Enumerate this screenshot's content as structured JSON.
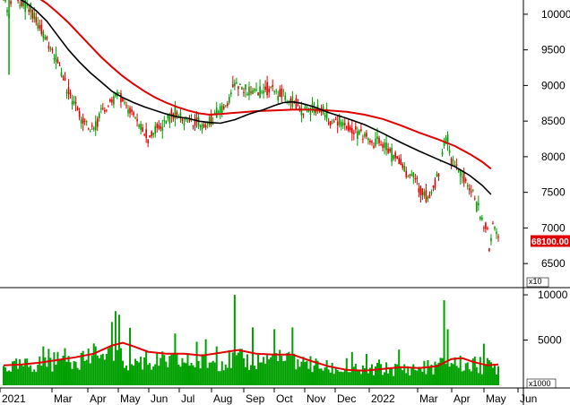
{
  "chart_data": [
    {
      "type": "candlestick",
      "x_ticks": [
        "2021",
        "Mar",
        "Apr",
        "May",
        "Jun",
        "Jul",
        "Aug",
        "Sep",
        "Oct",
        "Nov",
        "Dec",
        "2022",
        "Mar",
        "Apr",
        "May",
        "Jun"
      ],
      "y_ticks": [
        6500,
        7000,
        7500,
        8000,
        8500,
        9000,
        9500,
        10000
      ],
      "ylim": [
        6200,
        10200
      ],
      "y_multiplier_label": "x10",
      "last_price_label": "68100.00",
      "last_price": 6810,
      "colors": {
        "up": "#00a000",
        "down": "#e00000",
        "ma_short": "#000000",
        "ma_long": "#e00000"
      },
      "ma_short_path": [
        [
          0,
          10300
        ],
        [
          6,
          10250
        ],
        [
          12,
          10170
        ],
        [
          18,
          10050
        ],
        [
          24,
          9900
        ],
        [
          30,
          9700
        ],
        [
          36,
          9500
        ],
        [
          42,
          9330
        ],
        [
          48,
          9180
        ],
        [
          54,
          9050
        ],
        [
          60,
          8920
        ],
        [
          66,
          8830
        ],
        [
          72,
          8760
        ],
        [
          78,
          8700
        ],
        [
          84,
          8650
        ],
        [
          90,
          8600
        ],
        [
          96,
          8560
        ],
        [
          102,
          8540
        ],
        [
          108,
          8500
        ],
        [
          114,
          8480
        ],
        [
          120,
          8470
        ],
        [
          128,
          8520
        ],
        [
          136,
          8600
        ],
        [
          144,
          8660
        ],
        [
          150,
          8720
        ],
        [
          155,
          8760
        ],
        [
          160,
          8770
        ],
        [
          165,
          8750
        ],
        [
          172,
          8700
        ],
        [
          180,
          8620
        ],
        [
          190,
          8540
        ],
        [
          200,
          8450
        ],
        [
          210,
          8330
        ],
        [
          220,
          8200
        ],
        [
          230,
          8080
        ],
        [
          240,
          7970
        ],
        [
          250,
          7860
        ],
        [
          258,
          7740
        ],
        [
          265,
          7600
        ],
        [
          270,
          7470
        ]
      ],
      "ma_long_path": [
        [
          0,
          10400
        ],
        [
          6,
          10380
        ],
        [
          12,
          10320
        ],
        [
          18,
          10250
        ],
        [
          24,
          10150
        ],
        [
          30,
          10020
        ],
        [
          36,
          9880
        ],
        [
          42,
          9720
        ],
        [
          48,
          9560
        ],
        [
          54,
          9400
        ],
        [
          60,
          9260
        ],
        [
          66,
          9130
        ],
        [
          72,
          9020
        ],
        [
          78,
          8920
        ],
        [
          84,
          8830
        ],
        [
          90,
          8760
        ],
        [
          96,
          8700
        ],
        [
          102,
          8650
        ],
        [
          108,
          8610
        ],
        [
          114,
          8590
        ],
        [
          120,
          8600
        ],
        [
          130,
          8620
        ],
        [
          140,
          8640
        ],
        [
          150,
          8650
        ],
        [
          160,
          8660
        ],
        [
          170,
          8660
        ],
        [
          180,
          8650
        ],
        [
          190,
          8630
        ],
        [
          200,
          8590
        ],
        [
          210,
          8530
        ],
        [
          220,
          8440
        ],
        [
          230,
          8340
        ],
        [
          240,
          8250
        ],
        [
          250,
          8150
        ],
        [
          258,
          8040
        ],
        [
          265,
          7930
        ],
        [
          270,
          7830
        ]
      ],
      "price_path": [
        [
          0,
          10350
        ],
        [
          3,
          9950
        ],
        [
          5,
          10300
        ],
        [
          8,
          10200
        ],
        [
          12,
          10150
        ],
        [
          16,
          10000
        ],
        [
          20,
          9800
        ],
        [
          24,
          9650
        ],
        [
          28,
          9400
        ],
        [
          32,
          9200
        ],
        [
          36,
          8900
        ],
        [
          40,
          8700
        ],
        [
          44,
          8500
        ],
        [
          48,
          8350
        ],
        [
          52,
          8500
        ],
        [
          56,
          8650
        ],
        [
          60,
          8800
        ],
        [
          64,
          8900
        ],
        [
          68,
          8700
        ],
        [
          72,
          8600
        ],
        [
          76,
          8400
        ],
        [
          80,
          8250
        ],
        [
          84,
          8380
        ],
        [
          88,
          8450
        ],
        [
          92,
          8550
        ],
        [
          96,
          8600
        ],
        [
          100,
          8520
        ],
        [
          104,
          8480
        ],
        [
          108,
          8450
        ],
        [
          112,
          8420
        ],
        [
          116,
          8550
        ],
        [
          120,
          8620
        ],
        [
          124,
          8750
        ],
        [
          128,
          9000
        ],
        [
          132,
          8950
        ],
        [
          136,
          8880
        ],
        [
          140,
          8900
        ],
        [
          144,
          8920
        ],
        [
          148,
          8960
        ],
        [
          152,
          8880
        ],
        [
          156,
          8820
        ],
        [
          160,
          8780
        ],
        [
          164,
          8700
        ],
        [
          168,
          8620
        ],
        [
          172,
          8660
        ],
        [
          176,
          8640
        ],
        [
          180,
          8540
        ],
        [
          184,
          8500
        ],
        [
          188,
          8450
        ],
        [
          192,
          8400
        ],
        [
          196,
          8350
        ],
        [
          200,
          8300
        ],
        [
          204,
          8180
        ],
        [
          208,
          8200
        ],
        [
          212,
          8120
        ],
        [
          216,
          8000
        ],
        [
          220,
          7900
        ],
        [
          224,
          7750
        ],
        [
          228,
          7650
        ],
        [
          232,
          7500
        ],
        [
          236,
          7400
        ],
        [
          240,
          7680
        ],
        [
          244,
          8150
        ],
        [
          246,
          8250
        ],
        [
          248,
          7950
        ],
        [
          252,
          7800
        ],
        [
          256,
          7650
        ],
        [
          260,
          7500
        ],
        [
          263,
          7250
        ],
        [
          266,
          7050
        ],
        [
          268,
          6950
        ],
        [
          269,
          6650
        ],
        [
          271,
          7000
        ],
        [
          273,
          6950
        ],
        [
          274,
          6810
        ]
      ],
      "spread": 180
    },
    {
      "type": "bar",
      "ylim": [
        0,
        10500
      ],
      "y_ticks": [
        5000,
        10000
      ],
      "y_multiplier_label": "x1000",
      "colors": {
        "bars": "#00a000",
        "ma": "#e00000"
      },
      "baseline_path": [
        [
          0,
          2000
        ],
        [
          10,
          2100
        ],
        [
          20,
          2400
        ],
        [
          30,
          2700
        ],
        [
          40,
          3100
        ],
        [
          50,
          3200
        ],
        [
          60,
          3000
        ],
        [
          70,
          2700
        ],
        [
          80,
          2600
        ],
        [
          90,
          2600
        ],
        [
          100,
          2600
        ],
        [
          110,
          2500
        ],
        [
          120,
          2700
        ],
        [
          130,
          2800
        ],
        [
          140,
          2700
        ],
        [
          150,
          2900
        ],
        [
          160,
          2600
        ],
        [
          170,
          2300
        ],
        [
          180,
          1900
        ],
        [
          190,
          1700
        ],
        [
          200,
          1600
        ],
        [
          210,
          1800
        ],
        [
          220,
          1800
        ],
        [
          230,
          1900
        ],
        [
          240,
          2100
        ],
        [
          248,
          2600
        ],
        [
          255,
          2300
        ],
        [
          262,
          2200
        ],
        [
          270,
          2100
        ],
        [
          274,
          2000
        ]
      ],
      "spikes": [
        [
          60,
          7000
        ],
        [
          62,
          8200
        ],
        [
          64,
          7800
        ],
        [
          128,
          10000
        ],
        [
          138,
          6400
        ],
        [
          150,
          6200
        ],
        [
          160,
          6400
        ],
        [
          244,
          9400
        ],
        [
          246,
          6200
        ],
        [
          266,
          4600
        ],
        [
          22,
          4300
        ],
        [
          118,
          4300
        ]
      ],
      "ma_path": [
        [
          0,
          2200
        ],
        [
          10,
          2300
        ],
        [
          20,
          2500
        ],
        [
          30,
          2800
        ],
        [
          40,
          3100
        ],
        [
          50,
          3500
        ],
        [
          60,
          4400
        ],
        [
          66,
          4700
        ],
        [
          72,
          4300
        ],
        [
          80,
          3700
        ],
        [
          90,
          3500
        ],
        [
          100,
          3500
        ],
        [
          110,
          3300
        ],
        [
          120,
          3600
        ],
        [
          130,
          3900
        ],
        [
          140,
          3500
        ],
        [
          150,
          3400
        ],
        [
          160,
          3400
        ],
        [
          170,
          2700
        ],
        [
          180,
          2100
        ],
        [
          190,
          1700
        ],
        [
          200,
          1600
        ],
        [
          210,
          1800
        ],
        [
          220,
          2000
        ],
        [
          230,
          1900
        ],
        [
          240,
          2100
        ],
        [
          248,
          2900
        ],
        [
          254,
          3000
        ],
        [
          260,
          2600
        ],
        [
          268,
          2200
        ],
        [
          274,
          2300
        ]
      ]
    }
  ]
}
